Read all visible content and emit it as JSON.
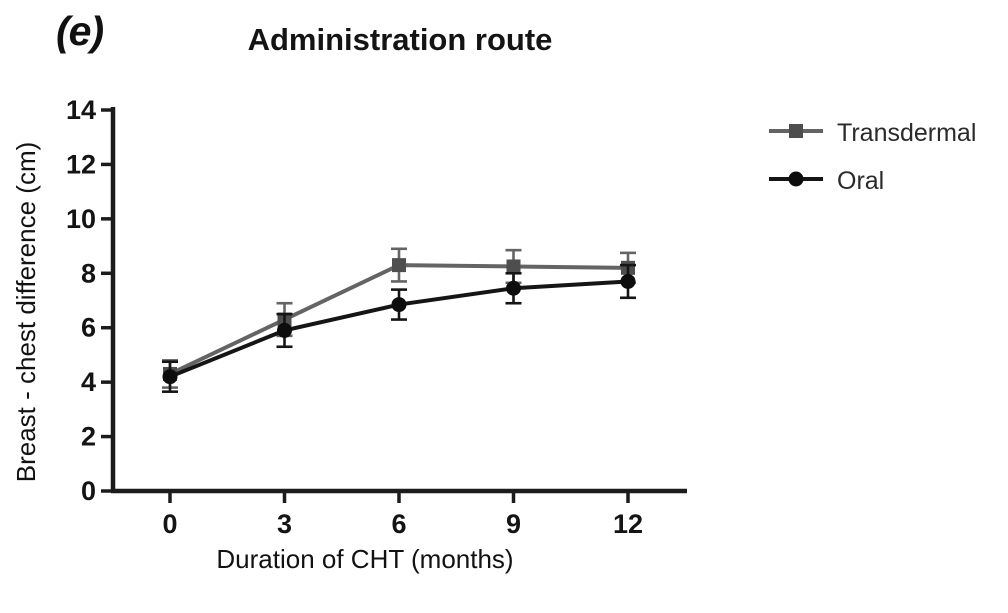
{
  "figure": {
    "panel_label": "(e)",
    "title": "Administration route"
  },
  "chart_data": {
    "type": "line",
    "title": "Administration route",
    "xlabel": "Duration of CHT (months)",
    "ylabel": "Breast - chest difference (cm)",
    "x": [
      0,
      3,
      6,
      9,
      12
    ],
    "x_ticks": [
      0,
      3,
      6,
      9,
      12
    ],
    "y_ticks": [
      0,
      2,
      4,
      6,
      8,
      10,
      12,
      14
    ],
    "ylim": [
      0,
      14
    ],
    "xlim": [
      0,
      12
    ],
    "grid": false,
    "legend_position": "right",
    "series": [
      {
        "name": "Transdermal",
        "marker": "square",
        "color": "#646464",
        "marker_color": "#4e4e4e",
        "values": [
          4.3,
          6.3,
          8.3,
          8.25,
          8.2
        ],
        "errors": [
          0.5,
          0.6,
          0.6,
          0.6,
          0.55
        ]
      },
      {
        "name": "Oral",
        "marker": "circle",
        "color": "#151515",
        "marker_color": "#0d0d0d",
        "values": [
          4.2,
          5.9,
          6.85,
          7.45,
          7.7
        ],
        "errors": [
          0.55,
          0.6,
          0.55,
          0.55,
          0.6
        ]
      }
    ]
  }
}
